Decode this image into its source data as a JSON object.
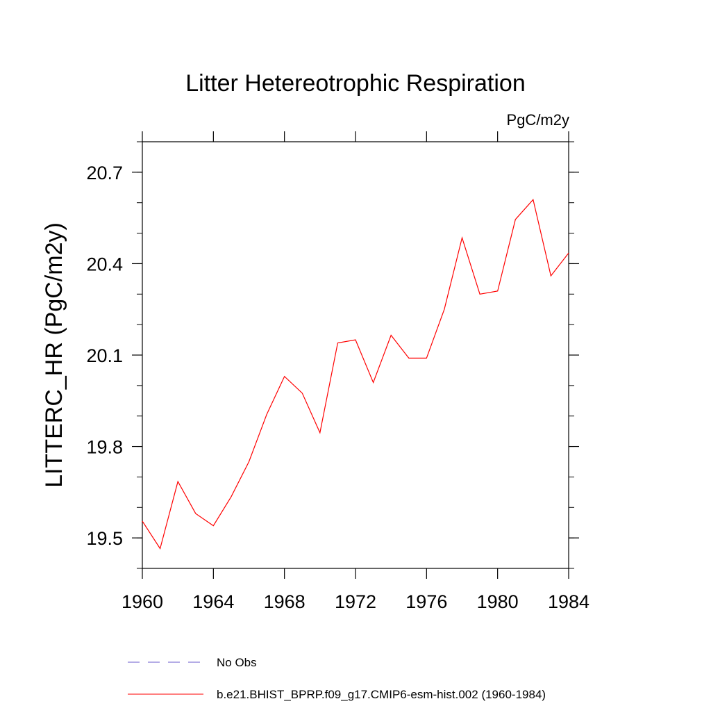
{
  "chart_data": {
    "type": "line",
    "title": "Litter Hetereotrophic Respiration",
    "subtitle": "PgC/m2y",
    "xlabel": "",
    "ylabel": "LITTERC_HR  (PgC/m2y)",
    "xlim": [
      1960,
      1984
    ],
    "ylim": [
      19.4,
      20.8
    ],
    "x_ticks": [
      1960,
      1964,
      1968,
      1972,
      1976,
      1980,
      1984
    ],
    "x_tick_labels": [
      "1960",
      "1964",
      "1968",
      "1972",
      "1976",
      "1980",
      "1984"
    ],
    "y_ticks": [
      19.5,
      19.8,
      20.1,
      20.4,
      20.7
    ],
    "y_tick_labels": [
      "19.5",
      "19.8",
      "20.1",
      "20.4",
      "20.7"
    ],
    "grid": false,
    "legend_placement": "bottom",
    "series": [
      {
        "name": "b.e21.BHIST_BPRP.f09_g17.CMIP6-esm-hist.002 (1960-1984)",
        "color": "#ff0000",
        "line_style": "solid",
        "x": [
          1960,
          1961,
          1962,
          1963,
          1964,
          1965,
          1966,
          1967,
          1968,
          1969,
          1970,
          1971,
          1972,
          1973,
          1974,
          1975,
          1976,
          1977,
          1978,
          1979,
          1980,
          1981,
          1982,
          1983,
          1984
        ],
        "values": [
          19.555,
          19.465,
          19.685,
          19.58,
          19.54,
          19.635,
          19.75,
          19.905,
          20.03,
          19.975,
          19.845,
          20.14,
          20.15,
          20.01,
          20.165,
          20.09,
          20.09,
          20.25,
          20.485,
          20.3,
          20.31,
          20.545,
          20.61,
          20.36,
          20.435
        ]
      }
    ],
    "legend": [
      {
        "label": "No Obs",
        "color": "#6a5acd",
        "line_style": "dashed"
      },
      {
        "label": "b.e21.BHIST_BPRP.f09_g17.CMIP6-esm-hist.002 (1960-1984)",
        "color": "#ff0000",
        "line_style": "solid"
      }
    ]
  }
}
